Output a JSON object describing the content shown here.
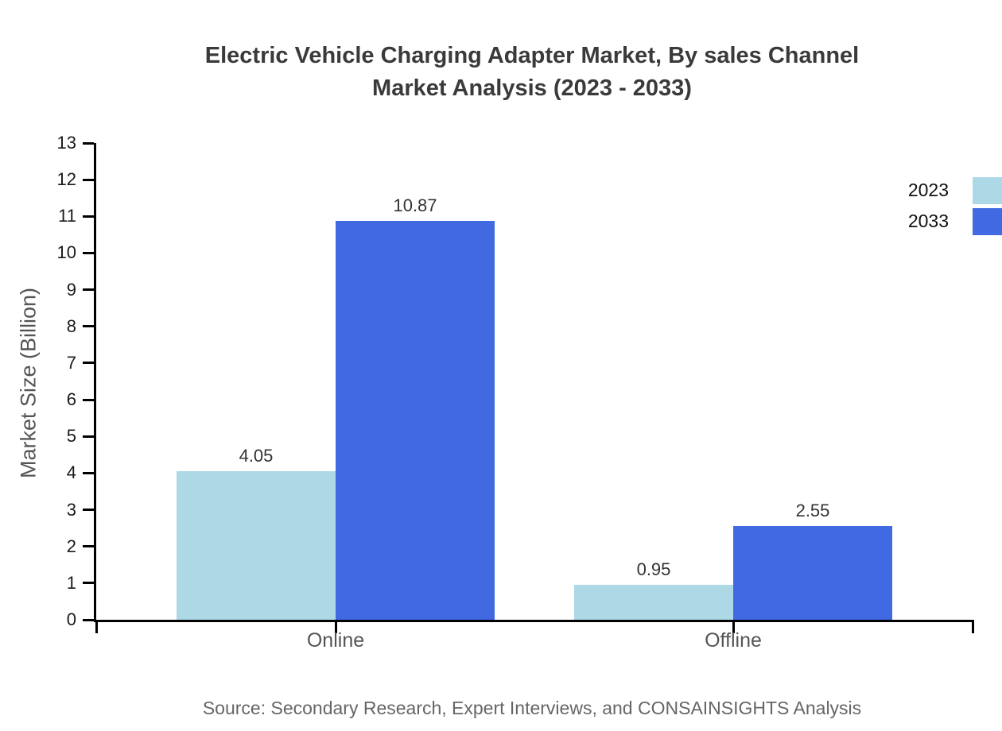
{
  "title": {
    "line1": "Electric Vehicle Charging Adapter Market, By sales Channel",
    "line2": "Market Analysis (2023 - 2033)"
  },
  "source": "Source: Secondary Research, Expert Interviews, and CONSAINSIGHTS Analysis",
  "chart_data": {
    "type": "bar",
    "categories": [
      "Online",
      "Offline"
    ],
    "series": [
      {
        "name": "2023",
        "color": "#ADD8E6",
        "values": [
          4.05,
          0.95
        ]
      },
      {
        "name": "2033",
        "color": "#4169E1",
        "values": [
          10.87,
          2.55
        ]
      }
    ],
    "title": "Electric Vehicle Charging Adapter Market, By sales Channel Market Analysis (2023 - 2033)",
    "xlabel": "",
    "ylabel": "Market Size (Billion)",
    "ylim": [
      0,
      13
    ],
    "ytick_step": 1,
    "grid": false,
    "legend_position": "top-right",
    "value_label_decimals": 2,
    "axis_color": "#000000",
    "text_colors": {
      "title": "#3a3a3a",
      "tick_labels": "#1a1a1a",
      "category_labels": "#555555",
      "value_labels": "#333333",
      "source": "#666666"
    }
  }
}
